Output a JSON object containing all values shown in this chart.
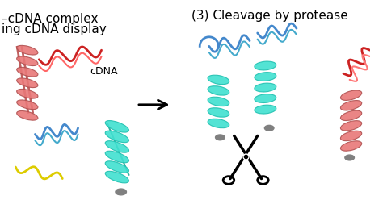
{
  "background_color": "#ffffff",
  "left_label_line1": "–cDNA complex",
  "left_label_line2": "ing cDNA display",
  "right_label": "(3) Cleavage by protease",
  "cdna_label": "cDNA",
  "label_fontsize": 11,
  "arrow_color": "#000000",
  "protein_pink_color": "#d9534f",
  "protein_helix_color": "#e87878",
  "teal_helix_color": "#40e0d0",
  "dna_red_color": "#cc2222",
  "dna_blue_color": "#4488cc",
  "dna_cyan_color": "#44aacc",
  "dna_yellow_color": "#ddcc00",
  "bead_color": "#808080",
  "scissors_color": "#111111"
}
